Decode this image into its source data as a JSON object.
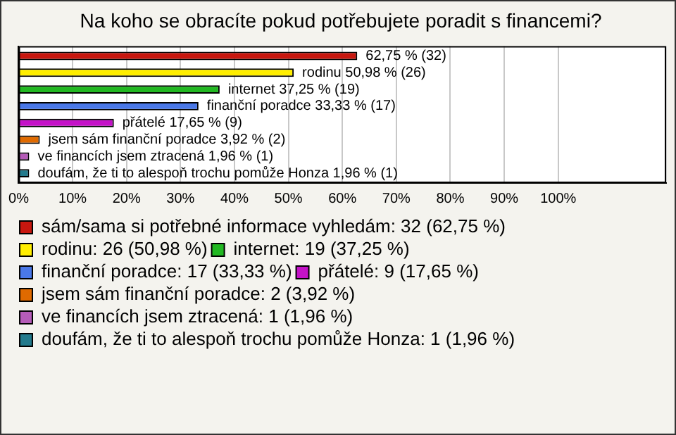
{
  "chart_data": {
    "type": "bar",
    "orientation": "horizontal",
    "title": "Na koho se obracíte pokud potřebujete poradit s financemi?",
    "categories": [
      null
    ],
    "series": [
      {
        "name": "sám/sama si potřebné informace vyhledám: 32 (62,75 %)",
        "color": "#c8170f",
        "values": [
          62.75
        ],
        "value_labels": [
          "62,75 % (32)"
        ]
      },
      {
        "name": "rodinu: 26 (50,98 %)",
        "color": "#ffee00",
        "values": [
          50.98
        ],
        "value_labels": [
          "rodinu 50,98 % (26)"
        ]
      },
      {
        "name": "internet: 19 (37,25 %)",
        "color": "#22b822",
        "values": [
          37.25
        ],
        "value_labels": [
          "internet 37,25 % (19)"
        ]
      },
      {
        "name": "finanční poradce: 17 (33,33 %)",
        "color": "#4a78e8",
        "values": [
          33.33
        ],
        "value_labels": [
          "finanční poradce 33,33 % (17)"
        ]
      },
      {
        "name": "přátelé: 9 (17,65 %)",
        "color": "#c412c8",
        "values": [
          17.65
        ],
        "value_labels": [
          "přátelé 17,65 % (9)"
        ]
      },
      {
        "name": "jsem sám finanční poradce: 2 (3,92 %)",
        "color": "#e06a00",
        "values": [
          3.92
        ],
        "value_labels": [
          "jsem sám finanční poradce 3,92 % (2)"
        ]
      },
      {
        "name": "ve financích jsem ztracená: 1 (1,96 %)",
        "color": "#b55cb8",
        "values": [
          1.96
        ],
        "value_labels": [
          "ve financích jsem ztracená 1,96 % (1)"
        ]
      },
      {
        "name": "doufám, že ti to alespoň trochu pomůže Honza: 1 (1,96 %)",
        "color": "#237a8c",
        "values": [
          1.96
        ],
        "value_labels": [
          "doufám, že ti to alespoň trochu pomůže Honza 1,96 % (1)"
        ]
      }
    ],
    "xlim": [
      0,
      120
    ],
    "xticks": [
      {
        "value": 0,
        "label": "0%"
      },
      {
        "value": 10,
        "label": "10%"
      },
      {
        "value": 20,
        "label": "20%"
      },
      {
        "value": 30,
        "label": "30%"
      },
      {
        "value": 40,
        "label": "40%"
      },
      {
        "value": 50,
        "label": "50%"
      },
      {
        "value": 60,
        "label": "60%"
      },
      {
        "value": 70,
        "label": "70%"
      },
      {
        "value": 80,
        "label": "80%"
      },
      {
        "value": 90,
        "label": "90%"
      },
      {
        "value": 100,
        "label": "100%"
      },
      {
        "value": 120,
        "label": null
      }
    ],
    "grid": "x",
    "legend": "bottom left",
    "tick_labels": "x"
  }
}
